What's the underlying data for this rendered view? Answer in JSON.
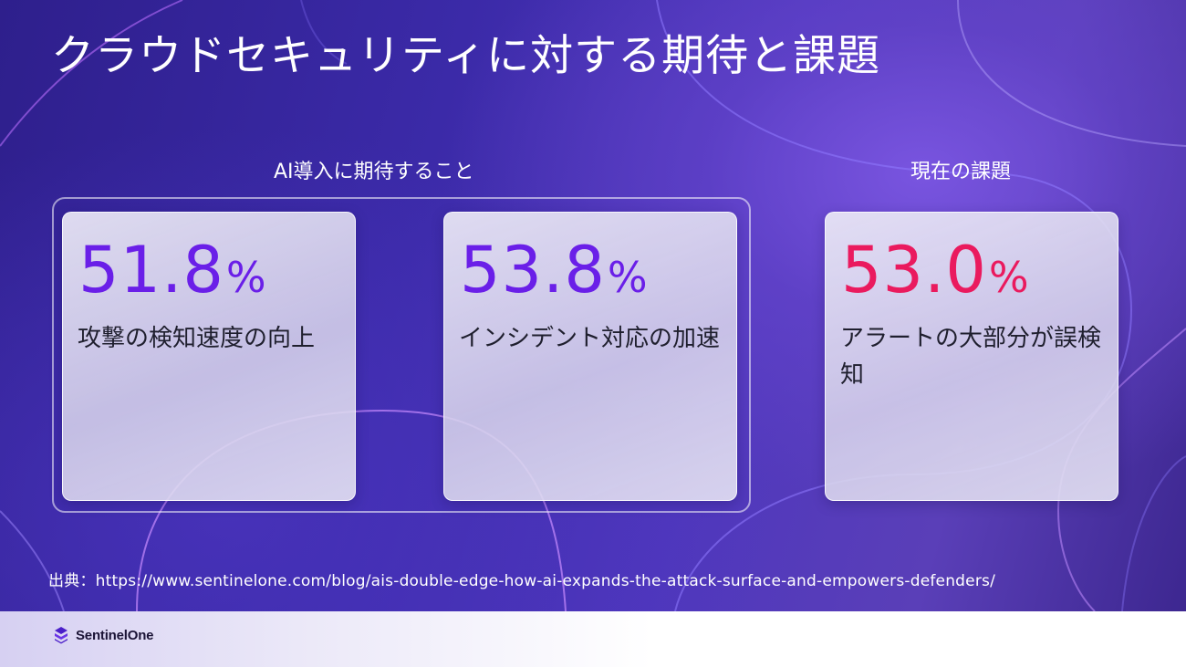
{
  "slide": {
    "title": "クラウドセキュリティに対する期待と課題",
    "left_section_label": "AI導入に期待すること",
    "right_section_label": "現在の課題",
    "cards": [
      {
        "value": "51.8",
        "unit": "%",
        "description": "攻撃の検知速度の向上",
        "accent": "#6a1fe8"
      },
      {
        "value": "53.8",
        "unit": "%",
        "description": "インシデント対応の加速",
        "accent": "#6a1fe8"
      },
      {
        "value": "53.0",
        "unit": "%",
        "description": "アラートの大部分が誤検知",
        "accent": "#ea1a5e"
      }
    ],
    "source": "出典：https://www.sentinelone.com/blog/ais-double-edge-how-ai-expands-the-attack-surface-and-empowers-defenders/"
  },
  "footer": {
    "logo_icon": "sentinelone-logo-icon",
    "logo_text": "SentinelOne"
  }
}
